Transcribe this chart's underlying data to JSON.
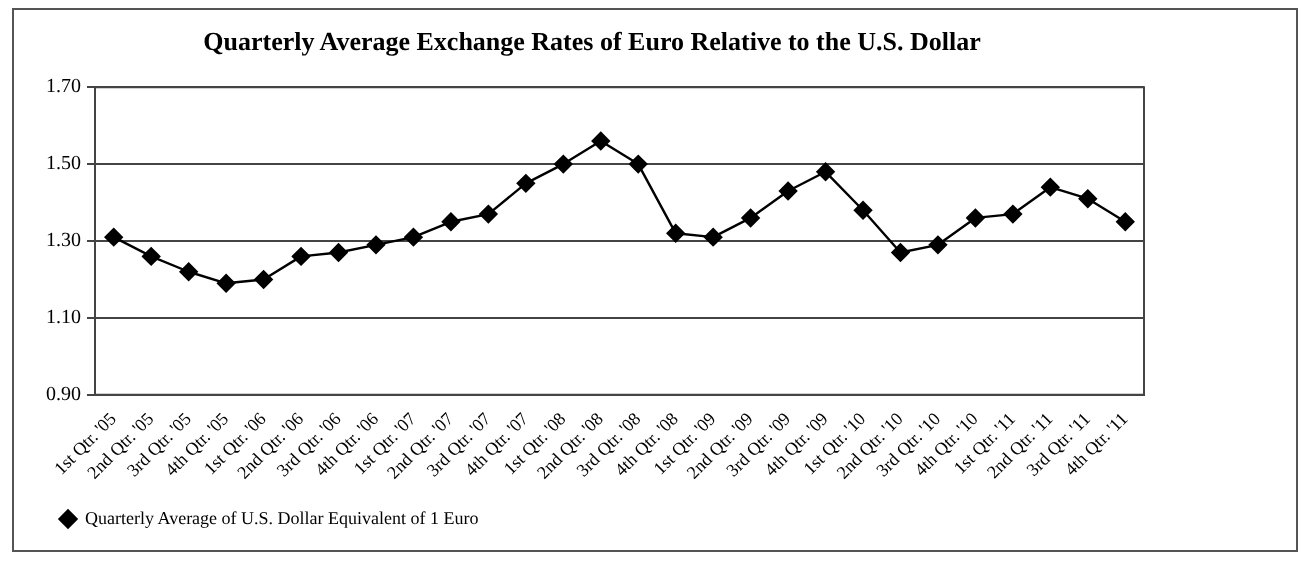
{
  "chart_data": {
    "type": "line",
    "title": "Quarterly Average Exchange Rates of Euro Relative to the U.S. Dollar",
    "categories": [
      "1st Qtr. '05",
      "2nd Qtr. '05",
      "3rd Qtr. '05",
      "4th Qtr. '05",
      "1st Qtr. '06",
      "2nd Qtr. '06",
      "3rd Qtr. '06",
      "4th Qtr. '06",
      "1st Qtr. '07",
      "2nd Qtr. '07",
      "3rd Qtr. '07",
      "4th Qtr. '07",
      "1st Qtr. '08",
      "2nd Qtr. '08",
      "3rd Qtr. '08",
      "4th Qtr. '08",
      "1st Qtr. '09",
      "2nd Qtr. '09",
      "3rd Qtr. '09",
      "4th Qtr. '09",
      "1st Qtr. '10",
      "2nd Qtr. '10",
      "3rd Qtr. '10",
      "4th Qtr. '10",
      "1st Qtr. '11",
      "2nd Qtr. '11",
      "3rd Qtr. '11",
      "4th Qtr. '11"
    ],
    "series": [
      {
        "name": "Quarterly Average of U.S. Dollar Equivalent of 1 Euro",
        "color": "#000000",
        "values": [
          1.31,
          1.26,
          1.22,
          1.19,
          1.2,
          1.26,
          1.27,
          1.29,
          1.31,
          1.35,
          1.37,
          1.45,
          1.5,
          1.56,
          1.5,
          1.32,
          1.31,
          1.36,
          1.43,
          1.48,
          1.38,
          1.27,
          1.29,
          1.36,
          1.37,
          1.44,
          1.41,
          1.35
        ]
      }
    ],
    "ylim": [
      0.9,
      1.7
    ],
    "yticks": [
      {
        "value": 0.9,
        "label": "0.90"
      },
      {
        "value": 1.1,
        "label": "1.10"
      },
      {
        "value": 1.3,
        "label": "1.30"
      },
      {
        "value": 1.5,
        "label": "1.50"
      },
      {
        "value": 1.7,
        "label": "1.70"
      }
    ],
    "grid": "y",
    "legend": "bottom",
    "marker": "diamond",
    "line_style": "solid"
  }
}
